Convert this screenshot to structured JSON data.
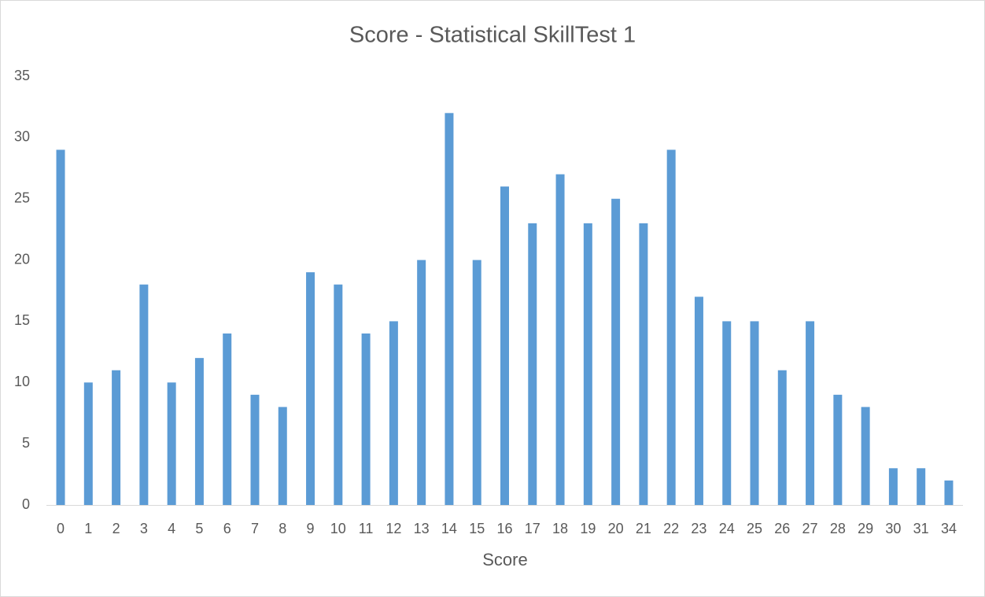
{
  "chart_data": {
    "type": "bar",
    "title": "Score - Statistical SkillTest 1",
    "x_label": "Score",
    "categories": [
      "0",
      "1",
      "2",
      "3",
      "4",
      "5",
      "6",
      "7",
      "8",
      "9",
      "10",
      "11",
      "12",
      "13",
      "14",
      "15",
      "16",
      "17",
      "18",
      "19",
      "20",
      "21",
      "22",
      "23",
      "24",
      "25",
      "26",
      "27",
      "28",
      "29",
      "30",
      "31",
      "34"
    ],
    "values": [
      29,
      10,
      11,
      18,
      10,
      12,
      14,
      9,
      8,
      19,
      18,
      14,
      15,
      20,
      32,
      20,
      26,
      23,
      27,
      23,
      25,
      23,
      29,
      17,
      15,
      15,
      11,
      15,
      9,
      8,
      3,
      3,
      2
    ],
    "color": "#5b9bd5",
    "ylim": [
      0,
      35
    ],
    "yticks": [
      0,
      5,
      10,
      15,
      20,
      25,
      30,
      35
    ],
    "grid": false
  }
}
